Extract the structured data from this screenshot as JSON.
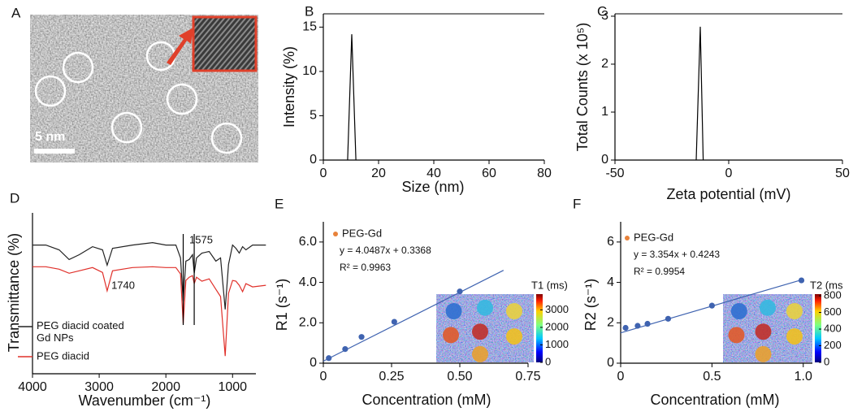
{
  "image_panel": {
    "label": "A",
    "scale_bar": "5 nm"
  },
  "chart_data": [
    {
      "type": "line",
      "label": "B",
      "xlabel": "Size (nm)",
      "ylabel": "Intensity (%)",
      "xlim": [
        0,
        80
      ],
      "xticks": [
        0,
        20,
        40,
        60,
        80
      ],
      "ylim": [
        0,
        16.5
      ],
      "yticks": [
        0,
        5,
        10,
        15
      ],
      "x": [
        8.8,
        10.3,
        11.8
      ],
      "series": [
        {
          "color": "#000000",
          "values": [
            0,
            14.2,
            0
          ]
        }
      ]
    },
    {
      "type": "line",
      "label": "C",
      "xlabel": "Zeta potential (mV)",
      "ylabel": "Total Counts (x 10⁵)",
      "xlim": [
        -50,
        50
      ],
      "xticks": [
        -50,
        0,
        50
      ],
      "ylim": [
        0,
        3.05
      ],
      "yticks": [
        0,
        1,
        2,
        3
      ],
      "x": [
        -14.3,
        -12.5,
        -11.2
      ],
      "series": [
        {
          "color": "#000000",
          "values": [
            0,
            2.78,
            0
          ]
        }
      ]
    },
    {
      "type": "line",
      "label": "D",
      "xlabel": "Wavenumber (cm⁻¹)",
      "ylabel": "Transmittance (%)",
      "xlim": [
        4000,
        650
      ],
      "xticks": [
        4000,
        3000,
        2000,
        1000
      ],
      "ylim": [
        0,
        100
      ],
      "legend": "lower left",
      "x": [
        4000,
        3800,
        3600,
        3450,
        3300,
        3100,
        2950,
        2880,
        2800,
        2500,
        2200,
        2000,
        1850,
        1780,
        1740,
        1700,
        1650,
        1600,
        1575,
        1540,
        1460,
        1350,
        1250,
        1180,
        1110,
        1060,
        1000,
        950,
        900,
        850,
        800,
        700,
        500
      ],
      "series": [
        {
          "name": "PEG diacid coated Gd NPs",
          "color": "#222222",
          "values": [
            80,
            80,
            77,
            71,
            74,
            79,
            77,
            67.5,
            78,
            80,
            81.5,
            80,
            80,
            72,
            45,
            70,
            71,
            74,
            62.5,
            72,
            75,
            76,
            70,
            72,
            40,
            68,
            80,
            78,
            75,
            79,
            77,
            80,
            80
          ]
        },
        {
          "name": "PEG diacid",
          "color": "#e0302a",
          "values": [
            66.5,
            66.5,
            65,
            62.5,
            64,
            66,
            63,
            51.5,
            64,
            66,
            66.5,
            66,
            66,
            62,
            31,
            58,
            60,
            61,
            56,
            60,
            57.5,
            59,
            52.5,
            48,
            11,
            50,
            58,
            57.5,
            55,
            51,
            56,
            54,
            55
          ]
        }
      ],
      "annotations": [
        {
          "text": "1575",
          "x": 1575
        },
        {
          "text": "1740",
          "x": 1740
        }
      ]
    },
    {
      "type": "scatter",
      "label": "E",
      "xlabel": "Concentration (mM)",
      "ylabel": "R1 (s⁻¹)",
      "xlim": [
        0,
        0.75
      ],
      "xticks": [
        0,
        0.25,
        {
          "value": 0.5,
          "label": "0.50"
        },
        0.75
      ],
      "ylim": [
        0,
        7
      ],
      "yticks": [
        0,
        {
          "value": 2,
          "label": "2.0"
        },
        {
          "value": 4,
          "label": "4.0"
        },
        {
          "value": 6,
          "label": "6.0"
        }
      ],
      "x": [
        0.02,
        0.08,
        0.14,
        0.26,
        0.5
      ],
      "series": [
        {
          "name": "PEG-Gd",
          "color": "#3f63b0",
          "values": [
            0.25,
            0.7,
            1.3,
            2.05,
            3.55
          ]
        }
      ],
      "legend_color": "#e8823a",
      "fit": {
        "x": [
          0,
          0.66
        ],
        "values": [
          0.1,
          4.6
        ]
      },
      "annotations": [
        "y = 4.0487x + 0.3368",
        "R² = 0.9963"
      ],
      "inset": {
        "label": "T1 (ms)",
        "lim": [
          0,
          3900
        ],
        "ticks": [
          0,
          1000,
          2000,
          3000
        ]
      }
    },
    {
      "type": "scatter",
      "label": "F",
      "xlabel": "Concentration (mM)",
      "ylabel": "R2 (s⁻¹)",
      "xlim": [
        0,
        1.05
      ],
      "xticks": [
        0,
        0.5,
        {
          "value": 1,
          "label": "1.0"
        }
      ],
      "ylim": [
        0,
        7
      ],
      "yticks": [
        0,
        2,
        4,
        6
      ],
      "x": [
        0.027,
        0.093,
        0.147,
        0.26,
        0.5,
        0.99
      ],
      "series": [
        {
          "name": "PEG-Gd",
          "color": "#3f63b0",
          "values": [
            1.75,
            1.85,
            1.95,
            2.2,
            2.85,
            4.1
          ]
        }
      ],
      "legend_color": "#e8823a",
      "fit": {
        "x": [
          0,
          1.0
        ],
        "values": [
          1.5,
          4.15
        ]
      },
      "annotations": [
        "y = 3.354x + 0.4243",
        "R² = 0.9954"
      ],
      "inset": {
        "label": "T2 (ms",
        "lim": [
          0,
          820
        ],
        "ticks": [
          0,
          200,
          400,
          600,
          800
        ]
      }
    }
  ]
}
